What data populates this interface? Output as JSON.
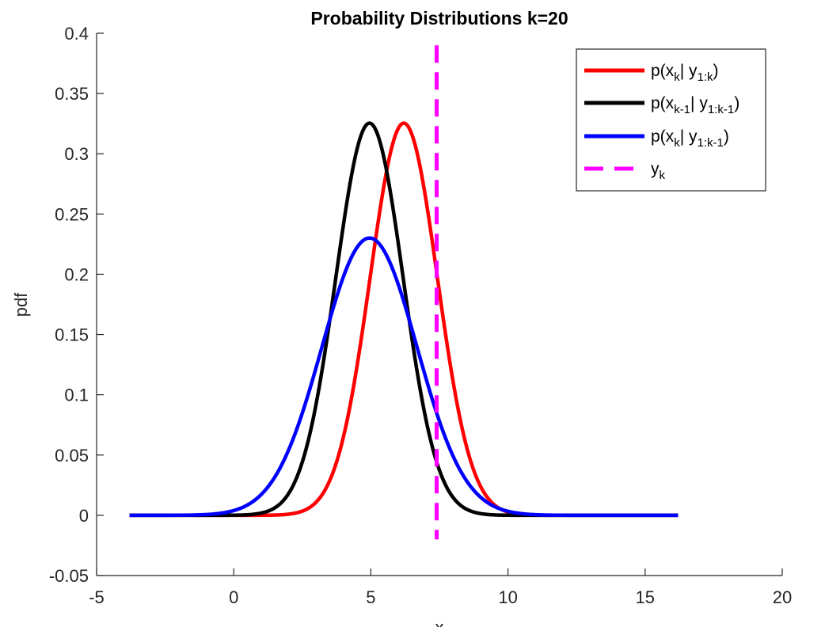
{
  "chart_data": {
    "type": "line",
    "title": "Probability Distributions k=20",
    "xlabel": "x",
    "ylabel": "pdf",
    "xlim": [
      -5,
      20
    ],
    "ylim": [
      -0.05,
      0.4
    ],
    "xticks": [
      -5,
      0,
      5,
      10,
      15,
      20
    ],
    "yticks": [
      -0.05,
      0,
      0.05,
      0.1,
      0.15,
      0.2,
      0.25,
      0.3,
      0.35,
      0.4
    ],
    "xtick_labels": [
      "-5",
      "0",
      "5",
      "10",
      "15",
      "20"
    ],
    "ytick_labels": [
      "-0.05",
      "0",
      "0.05",
      "0.1",
      "0.15",
      "0.2",
      "0.25",
      "0.3",
      "0.35",
      "0.4"
    ],
    "grid": false,
    "legend_position": "top-right",
    "series": [
      {
        "name": "p(x_k | y_{1:k})",
        "legend": {
          "base": "p(x",
          "sub1": "k",
          "mid": "| y",
          "sub2": "1:k",
          "end": ")"
        },
        "color": "#ff0000",
        "style": "solid",
        "distribution": "gaussian",
        "mean": 6.2,
        "std": 1.226,
        "x_range": [
          -3.8,
          16.2
        ],
        "peak": 0.326
      },
      {
        "name": "p(x_{k-1} | y_{1:k-1})",
        "legend": {
          "base": "p(x",
          "sub1": "k-1",
          "mid": "| y",
          "sub2": "1:k-1",
          "end": ")"
        },
        "color": "#000000",
        "style": "solid",
        "distribution": "gaussian",
        "mean": 4.95,
        "std": 1.226,
        "x_range": [
          -3.8,
          16.2
        ],
        "peak": 0.326
      },
      {
        "name": "p(x_k | y_{1:k-1})",
        "legend": {
          "base": "p(x",
          "sub1": "k",
          "mid": "| y",
          "sub2": "1:k-1",
          "end": ")"
        },
        "color": "#0000ff",
        "style": "solid",
        "distribution": "gaussian",
        "mean": 4.95,
        "std": 1.734,
        "x_range": [
          -3.8,
          16.2
        ],
        "peak": 0.23
      },
      {
        "name": "y_k",
        "legend": {
          "base": "y",
          "sub1": "k",
          "mid": "",
          "sub2": "",
          "end": ""
        },
        "color": "#ff00ff",
        "style": "dashed",
        "type": "vertical_line",
        "x": 7.4,
        "y_range": [
          -0.02,
          0.39
        ]
      }
    ]
  }
}
